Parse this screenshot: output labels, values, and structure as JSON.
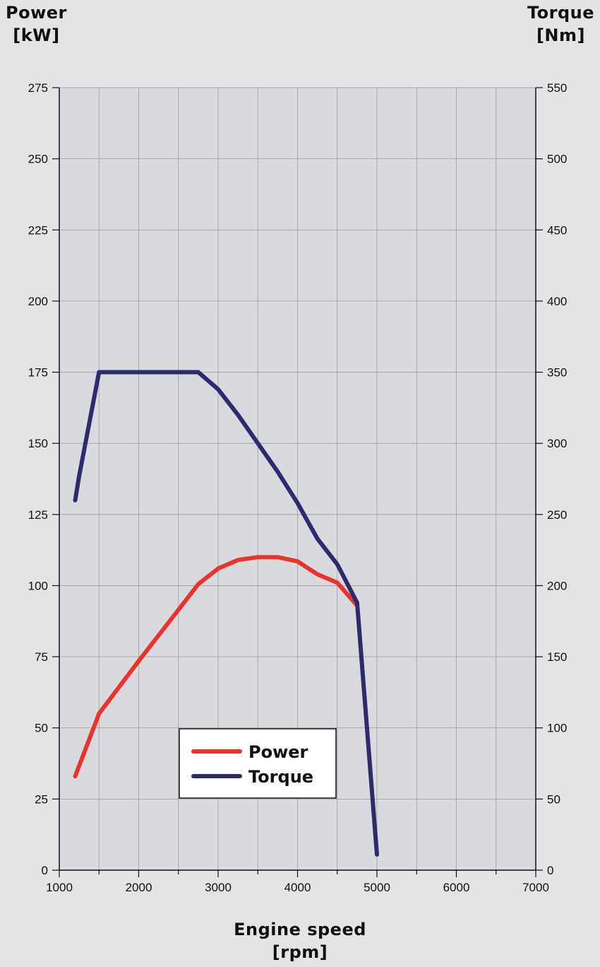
{
  "left_axis": {
    "title_line1": "Power",
    "title_line2": "[kW]"
  },
  "right_axis": {
    "title_line1": "Torque",
    "title_line2": "[Nm]"
  },
  "x_axis": {
    "title_line1": "Engine speed",
    "title_line2": "[rpm]"
  },
  "colors": {
    "power": "#e8342c",
    "torque": "#2e2a6e",
    "plot_bg": "#d9dadd",
    "page_bg": "#e3e4e6"
  },
  "chart_data": {
    "type": "line",
    "xlabel": "Engine speed [rpm]",
    "ylabel": "Power [kW]",
    "y2label": "Torque [Nm]",
    "xlim": [
      1000,
      7000
    ],
    "ylim": [
      0,
      275
    ],
    "y2lim": [
      0,
      550
    ],
    "x_ticks": [
      "1000",
      "2000",
      "3000",
      "4000",
      "5000",
      "6000",
      "7000"
    ],
    "y_ticks": [
      "0",
      "25",
      "50",
      "75",
      "100",
      "125",
      "150",
      "175",
      "200",
      "225",
      "250",
      "275"
    ],
    "y2_ticks": [
      "0",
      "50",
      "100",
      "150",
      "200",
      "250",
      "300",
      "350",
      "400",
      "450",
      "500",
      "550"
    ],
    "grid": true,
    "legend_position": "lower-center",
    "series": [
      {
        "name": "Power",
        "axis": "left",
        "color": "#e8342c",
        "x": [
          1200,
          1500,
          2000,
          2500,
          2750,
          3000,
          3250,
          3500,
          3750,
          4000,
          4250,
          4500,
          4750
        ],
        "y": [
          33,
          55,
          73.5,
          91.5,
          100.5,
          106,
          109,
          110,
          110,
          108.5,
          104,
          101,
          93
        ]
      },
      {
        "name": "Torque",
        "axis": "right",
        "color": "#2e2a6e",
        "x": [
          1200,
          1250,
          1500,
          2000,
          2500,
          2750,
          3000,
          3250,
          3500,
          3750,
          4000,
          4250,
          4500,
          4750,
          5000
        ],
        "y": [
          260,
          277,
          350,
          350,
          350,
          350,
          338,
          320,
          300,
          280,
          258,
          233,
          215,
          188,
          11
        ]
      }
    ]
  }
}
